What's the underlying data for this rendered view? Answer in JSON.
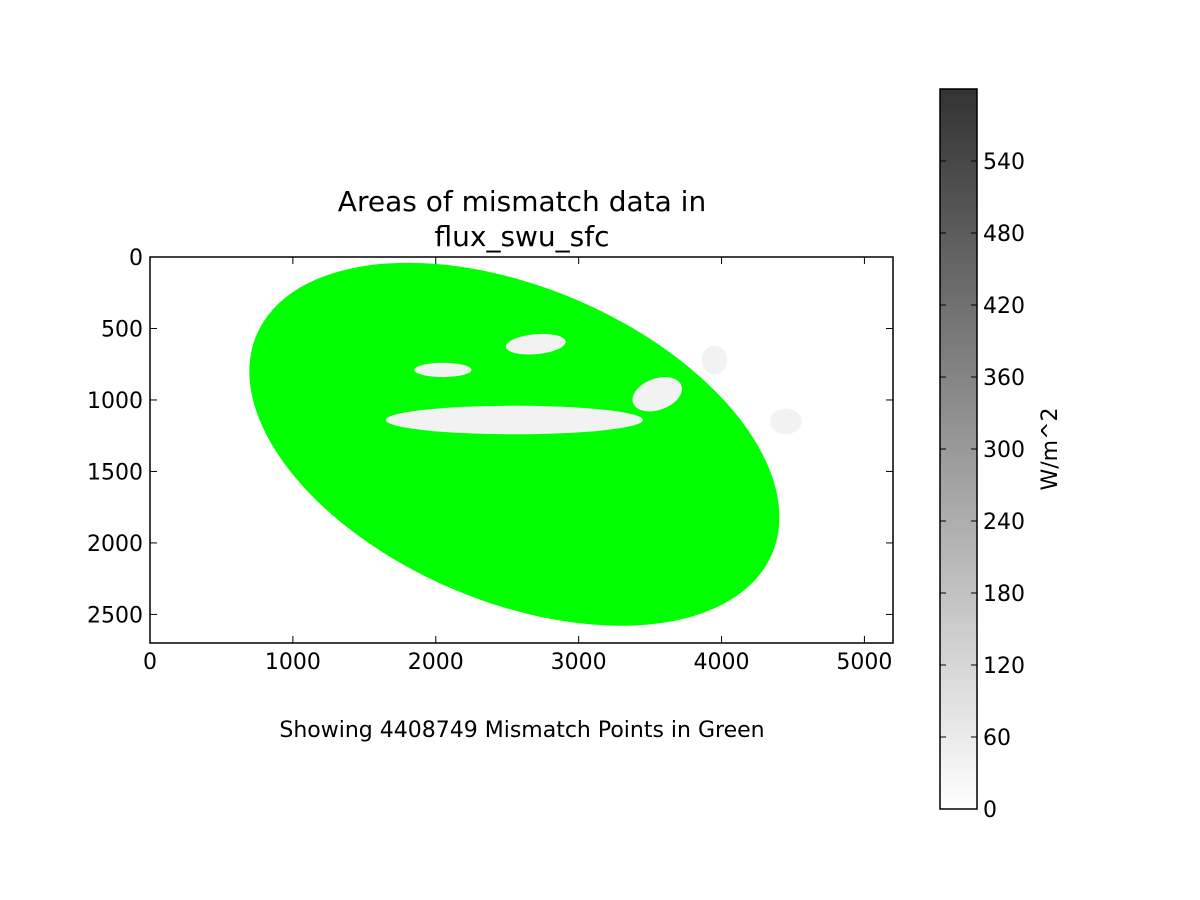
{
  "chart_data": {
    "type": "heatmap",
    "title_lines": [
      "Areas of mismatch data in",
      "flux_swu_sfc"
    ],
    "xlabel": "Showing 4408749 Mismatch Points in Green",
    "ylabel": "",
    "xlim": [
      0,
      5200
    ],
    "ylim": [
      2700,
      0
    ],
    "y_inverted": true,
    "x_ticks": [
      0,
      1000,
      2000,
      3000,
      4000,
      5000
    ],
    "y_ticks": [
      0,
      500,
      1000,
      1500,
      2000,
      2500
    ],
    "mismatch_color": "#00ff00",
    "mismatch_count": 4408749,
    "mismatch_region": {
      "shape": "tilted ellipse (earth disk)",
      "center": [
        2550,
        1310
      ],
      "semi_axes": [
        1960,
        1100
      ],
      "rotation_deg": 23
    },
    "non_mismatch_areas": [
      {
        "center": [
          2550,
          1140
        ],
        "semi_axes": [
          900,
          100
        ],
        "rotation_deg": 0
      },
      {
        "center": [
          3550,
          960
        ],
        "semi_axes": [
          180,
          110
        ],
        "rotation_deg": -20
      },
      {
        "center": [
          3950,
          720
        ],
        "semi_axes": [
          90,
          100
        ],
        "rotation_deg": 0
      },
      {
        "center": [
          4450,
          1150
        ],
        "semi_axes": [
          110,
          90
        ],
        "rotation_deg": 0
      },
      {
        "center": [
          2700,
          610
        ],
        "semi_axes": [
          210,
          70
        ],
        "rotation_deg": -5
      },
      {
        "center": [
          2050,
          790
        ],
        "semi_axes": [
          200,
          50
        ],
        "rotation_deg": 0
      }
    ],
    "colorbar": {
      "label": "W/m^2",
      "colormap": "Greys",
      "range": [
        0,
        600
      ],
      "ticks": [
        0,
        60,
        120,
        180,
        240,
        300,
        360,
        420,
        480,
        540
      ],
      "color_min": "#ffffff",
      "color_max": "#333333"
    }
  }
}
